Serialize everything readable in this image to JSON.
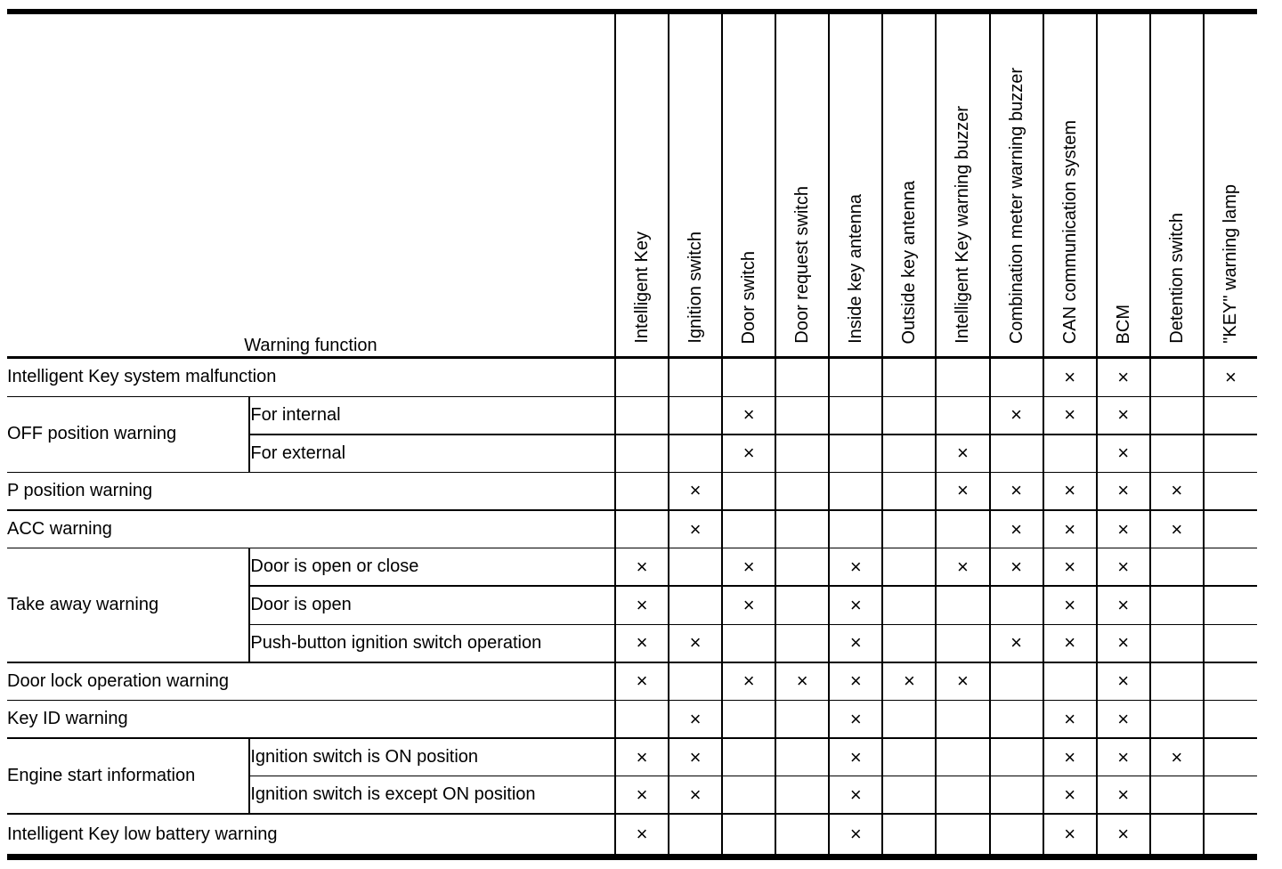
{
  "table": {
    "corner_header": "Warning function",
    "columns": [
      "Intelligent Key",
      "Ignition switch",
      "Door switch",
      "Door request switch",
      "Inside key antenna",
      "Outside key antenna",
      "Intelligent Key warning buzzer",
      "Combination meter warning buzzer",
      "CAN communication system",
      "BCM",
      "Detention switch",
      "\"KEY\" warning lamp"
    ],
    "mark_symbol": "×",
    "rows": [
      {
        "group": "Intelligent Key system malfunction",
        "sub": null,
        "cells": [
          "",
          "",
          "",
          "",
          "",
          "",
          "",
          "",
          "×",
          "×",
          "",
          "×"
        ]
      },
      {
        "group": "OFF position warning",
        "sub": "For internal",
        "cells": [
          "",
          "",
          "×",
          "",
          "",
          "",
          "",
          "×",
          "×",
          "×",
          "",
          ""
        ]
      },
      {
        "group": null,
        "sub": "For external",
        "cells": [
          "",
          "",
          "×",
          "",
          "",
          "",
          "×",
          "",
          "",
          "×",
          "",
          ""
        ]
      },
      {
        "group": "P position warning",
        "sub": null,
        "cells": [
          "",
          "×",
          "",
          "",
          "",
          "",
          "×",
          "×",
          "×",
          "×",
          "×",
          ""
        ]
      },
      {
        "group": "ACC warning",
        "sub": null,
        "cells": [
          "",
          "×",
          "",
          "",
          "",
          "",
          "",
          "×",
          "×",
          "×",
          "×",
          ""
        ]
      },
      {
        "group": "Take away warning",
        "sub": "Door is open or close",
        "cells": [
          "×",
          "",
          "×",
          "",
          "×",
          "",
          "×",
          "×",
          "×",
          "×",
          "",
          ""
        ]
      },
      {
        "group": null,
        "sub": "Door is open",
        "cells": [
          "×",
          "",
          "×",
          "",
          "×",
          "",
          "",
          "",
          "×",
          "×",
          "",
          ""
        ]
      },
      {
        "group": null,
        "sub": "Push-button ignition switch operation",
        "cells": [
          "×",
          "×",
          "",
          "",
          "×",
          "",
          "",
          "×",
          "×",
          "×",
          "",
          ""
        ]
      },
      {
        "group": "Door lock operation warning",
        "sub": null,
        "cells": [
          "×",
          "",
          "×",
          "×",
          "×",
          "×",
          "×",
          "",
          "",
          "×",
          "",
          ""
        ]
      },
      {
        "group": "Key ID warning",
        "sub": null,
        "cells": [
          "",
          "×",
          "",
          "",
          "×",
          "",
          "",
          "",
          "×",
          "×",
          "",
          ""
        ]
      },
      {
        "group": "Engine start information",
        "sub": "Ignition switch is ON position",
        "cells": [
          "×",
          "×",
          "",
          "",
          "×",
          "",
          "",
          "",
          "×",
          "×",
          "×",
          ""
        ]
      },
      {
        "group": null,
        "sub": "Ignition switch is except ON position",
        "cells": [
          "×",
          "×",
          "",
          "",
          "×",
          "",
          "",
          "",
          "×",
          "×",
          "",
          ""
        ]
      },
      {
        "group": "Intelligent Key low battery warning",
        "sub": null,
        "cells": [
          "×",
          "",
          "",
          "",
          "×",
          "",
          "",
          "",
          "×",
          "×",
          "",
          ""
        ]
      }
    ]
  },
  "colors": {
    "ink": "#000000",
    "paper": "#ffffff"
  }
}
